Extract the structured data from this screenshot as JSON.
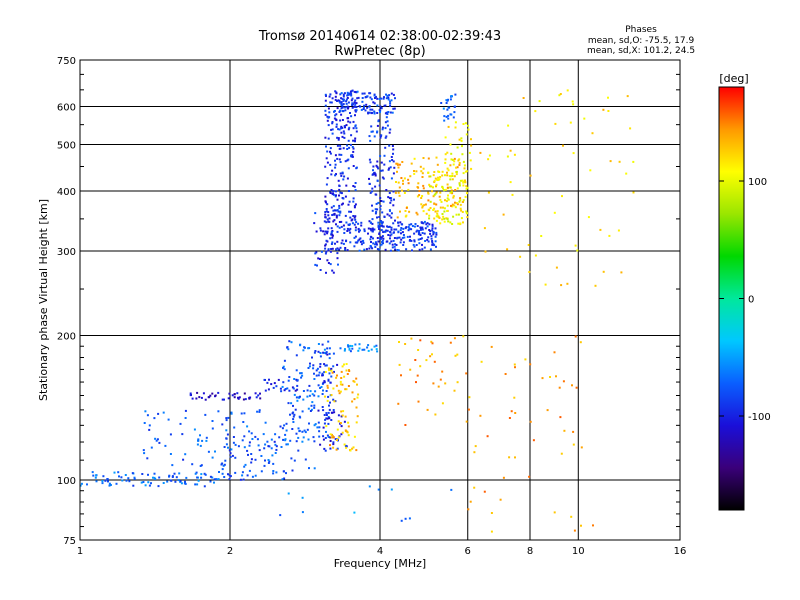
{
  "chart_data": {
    "type": "scatter",
    "title": "Tromsø 20140614 02:38:00-02:39:43",
    "subtitle": "RwPretec (8p)",
    "stats": {
      "heading": "Phases",
      "o_line": "mean, sd,O: -75.5, 17.9",
      "x_line": "mean, sd,X: 101.2, 24.5"
    },
    "xlabel": "Frequency [MHz]",
    "ylabel": "Stationary phase Virtual Height [km]",
    "x_scale": "log",
    "y_scale": "log",
    "xlim": [
      1,
      16
    ],
    "ylim": [
      75,
      750
    ],
    "grid": true,
    "x_ticks": [
      1,
      2,
      4,
      6,
      8,
      10,
      16
    ],
    "x_tick_labels": [
      "1",
      "2",
      "4",
      "6",
      "8",
      "10",
      "16"
    ],
    "y_ticks": [
      75,
      100,
      200,
      300,
      400,
      500,
      600,
      750
    ],
    "y_tick_labels": [
      "75",
      "100",
      "200",
      "300",
      "400",
      "500",
      "600",
      "750"
    ],
    "colorbar": {
      "label": "[deg]",
      "range": [
        -180,
        180
      ],
      "ticks": [
        100,
        0,
        -100
      ],
      "tick_labels": [
        "100",
        "0",
        "-100"
      ],
      "colors": [
        "#000000",
        "#3a007a",
        "#1a0fd9",
        "#0a5fff",
        "#00c8ff",
        "#00e89c",
        "#00d800",
        "#9ae600",
        "#ffff00",
        "#ff9900",
        "#ff0000"
      ]
    },
    "point_groups": [
      {
        "name": "lower trace",
        "x_range": [
          1.0,
          1.95
        ],
        "y_range": [
          97,
          104
        ],
        "phase": -70,
        "count": 90
      },
      {
        "name": "lower trace rising",
        "x_range": [
          1.95,
          2.6
        ],
        "y_range": [
          100,
          125
        ],
        "phase": -80,
        "count": 60
      },
      {
        "name": "E-region band",
        "x_range": [
          1.3,
          2.85
        ],
        "y_range": [
          104,
          140
        ],
        "phase": -75,
        "count": 110
      },
      {
        "name": "violet band",
        "x_range": [
          1.65,
          2.3
        ],
        "y_range": [
          147,
          152
        ],
        "phase": -115,
        "count": 40
      },
      {
        "name": "blue band",
        "x_range": [
          2.3,
          2.75
        ],
        "y_range": [
          153,
          162
        ],
        "phase": -100,
        "count": 20
      },
      {
        "name": "F1 rising trace",
        "x_range": [
          2.55,
          3.2
        ],
        "y_range": [
          120,
          195
        ],
        "phase": -75,
        "count": 140
      },
      {
        "name": "vertical streak",
        "x_range": [
          3.0,
          3.3
        ],
        "y_range": [
          145,
          185
        ],
        "phase": -90,
        "count": 30
      },
      {
        "name": "blue cluster",
        "x_range": [
          3.0,
          3.45
        ],
        "y_range": [
          115,
          140
        ],
        "phase": -100,
        "count": 40
      },
      {
        "name": "orange cluster",
        "x_range": [
          3.1,
          3.65
        ],
        "y_range": [
          115,
          175
        ],
        "phase": 130,
        "count": 80
      },
      {
        "name": "cyan row",
        "x_range": [
          3.3,
          3.95
        ],
        "y_range": [
          185,
          192
        ],
        "phase": -60,
        "count": 25
      },
      {
        "name": "F2 jump",
        "x_range": [
          2.95,
          3.3
        ],
        "y_range": [
          270,
          360
        ],
        "phase": -95,
        "count": 45
      },
      {
        "name": "F2 columns",
        "x_range": [
          3.1,
          3.6
        ],
        "y_range": [
          300,
          650
        ],
        "phase": -95,
        "count": 300
      },
      {
        "name": "F2 top",
        "x_range": [
          3.3,
          4.3
        ],
        "y_range": [
          580,
          645
        ],
        "phase": -85,
        "count": 110
      },
      {
        "name": "F2 right column",
        "x_range": [
          3.8,
          4.3
        ],
        "y_range": [
          300,
          600
        ],
        "phase": -90,
        "count": 150
      },
      {
        "name": "F2 bottom loop",
        "x_range": [
          3.6,
          5.2
        ],
        "y_range": [
          300,
          345
        ],
        "phase": -90,
        "count": 200
      },
      {
        "name": "X trace",
        "x_range": [
          4.3,
          5.9
        ],
        "y_range": [
          350,
          470
        ],
        "phase": 130,
        "count": 130
      },
      {
        "name": "X trace yellow",
        "x_range": [
          5.0,
          6.0
        ],
        "y_range": [
          340,
          440
        ],
        "phase": 105,
        "count": 100
      },
      {
        "name": "X high",
        "x_range": [
          5.4,
          6.1
        ],
        "y_range": [
          420,
          560
        ],
        "phase": 110,
        "count": 40
      },
      {
        "name": "upper cyan",
        "x_range": [
          5.3,
          5.7
        ],
        "y_range": [
          560,
          640
        ],
        "phase": -70,
        "count": 25
      },
      {
        "name": "sparse mid",
        "x_range": [
          4.3,
          6.2
        ],
        "y_range": [
          130,
          200
        ],
        "phase": 140,
        "count": 40
      },
      {
        "name": "sparse high",
        "x_range": [
          6.3,
          13.0
        ],
        "y_range": [
          250,
          650
        ],
        "phase": 120,
        "count": 60
      },
      {
        "name": "sparse low",
        "x_range": [
          6.0,
          11.0
        ],
        "y_range": [
          78,
          200
        ],
        "phase": 140,
        "count": 50
      },
      {
        "name": "scattered",
        "x_range": [
          2.5,
          6.0
        ],
        "y_range": [
          80,
          110
        ],
        "phase": -60,
        "count": 15
      }
    ]
  }
}
